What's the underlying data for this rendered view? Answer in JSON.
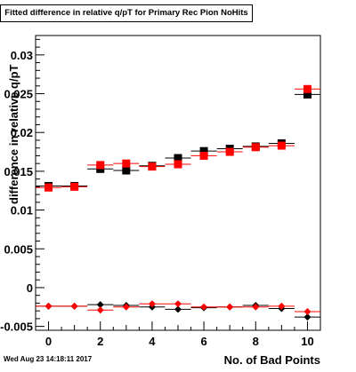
{
  "chart_data": {
    "type": "scatter",
    "title": "Fitted difference in relative q/pT for Primary Rec Pion NoHits",
    "xlabel": "No. of Bad Points",
    "ylabel": "difference in relative q/pT",
    "xlim": [
      -0.5,
      10.5
    ],
    "ylim": [
      -0.0055,
      0.0325
    ],
    "x_ticks": [
      "0",
      "2",
      "4",
      "6",
      "8",
      "10"
    ],
    "y_ticks": [
      "-0.005",
      "0",
      "0.005",
      "0.01",
      "0.015",
      "0.02",
      "0.025",
      "0.03"
    ],
    "x": [
      0,
      1,
      2,
      3,
      4,
      5,
      6,
      7,
      8,
      9,
      10
    ],
    "x_error": 0.5,
    "grid": false,
    "series": [
      {
        "marker": "square",
        "color": "#000000",
        "values": [
          0.0131,
          0.0131,
          0.0153,
          0.0151,
          0.0157,
          0.0167,
          0.0176,
          0.0179,
          0.0182,
          0.0186,
          0.0249
        ]
      },
      {
        "marker": "square",
        "color": "#ff0000",
        "values": [
          0.0129,
          0.013,
          0.0158,
          0.016,
          0.0156,
          0.0159,
          0.017,
          0.0175,
          0.0181,
          0.0183,
          0.0256
        ]
      },
      {
        "marker": "circle",
        "color": "#000000",
        "values": [
          -0.0024,
          -0.0024,
          -0.0022,
          -0.0023,
          -0.0025,
          -0.0028,
          -0.0026,
          -0.0025,
          -0.0023,
          -0.0027,
          -0.0038
        ]
      },
      {
        "marker": "circle",
        "color": "#ff0000",
        "values": [
          -0.0024,
          -0.0024,
          -0.0029,
          -0.0025,
          -0.0021,
          -0.0021,
          -0.0025,
          -0.0025,
          -0.0025,
          -0.0024,
          -0.0031
        ]
      }
    ]
  },
  "footer": {
    "timestamp": "Wed Aug 23 14:18:11 2017"
  }
}
